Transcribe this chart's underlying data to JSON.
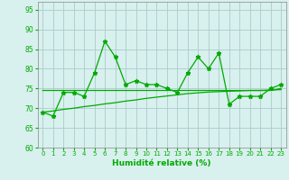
{
  "x": [
    0,
    1,
    2,
    3,
    4,
    5,
    6,
    7,
    8,
    9,
    10,
    11,
    12,
    13,
    14,
    15,
    16,
    17,
    18,
    19,
    20,
    21,
    22,
    23
  ],
  "y_main": [
    69,
    68,
    74,
    74,
    73,
    79,
    87,
    83,
    76,
    77,
    76,
    76,
    75,
    74,
    79,
    83,
    80,
    84,
    71,
    73,
    73,
    73,
    75,
    76
  ],
  "y_trend1": [
    74.5,
    74.5,
    74.5,
    74.5,
    74.5,
    74.5,
    74.5,
    74.5,
    74.5,
    74.5,
    74.5,
    74.5,
    74.5,
    74.5,
    74.5,
    74.5,
    74.5,
    74.5,
    74.5,
    74.5,
    74.5,
    74.5,
    74.5,
    75.0
  ],
  "y_trend2": [
    69.0,
    69.3,
    69.7,
    70.0,
    70.4,
    70.7,
    71.1,
    71.4,
    71.8,
    72.1,
    72.5,
    72.8,
    73.1,
    73.4,
    73.7,
    73.9,
    74.1,
    74.2,
    74.3,
    74.4,
    74.5,
    74.5,
    74.6,
    74.7
  ],
  "line_color": "#00AA00",
  "bg_color": "#D8F0EE",
  "grid_color": "#AACCCC",
  "xlabel": "Humidité relative (%)",
  "ylim": [
    60,
    97
  ],
  "yticks": [
    60,
    65,
    70,
    75,
    80,
    85,
    90,
    95
  ],
  "xlim": [
    -0.5,
    23.5
  ],
  "xticks": [
    0,
    1,
    2,
    3,
    4,
    5,
    6,
    7,
    8,
    9,
    10,
    11,
    12,
    13,
    14,
    15,
    16,
    17,
    18,
    19,
    20,
    21,
    22,
    23
  ]
}
